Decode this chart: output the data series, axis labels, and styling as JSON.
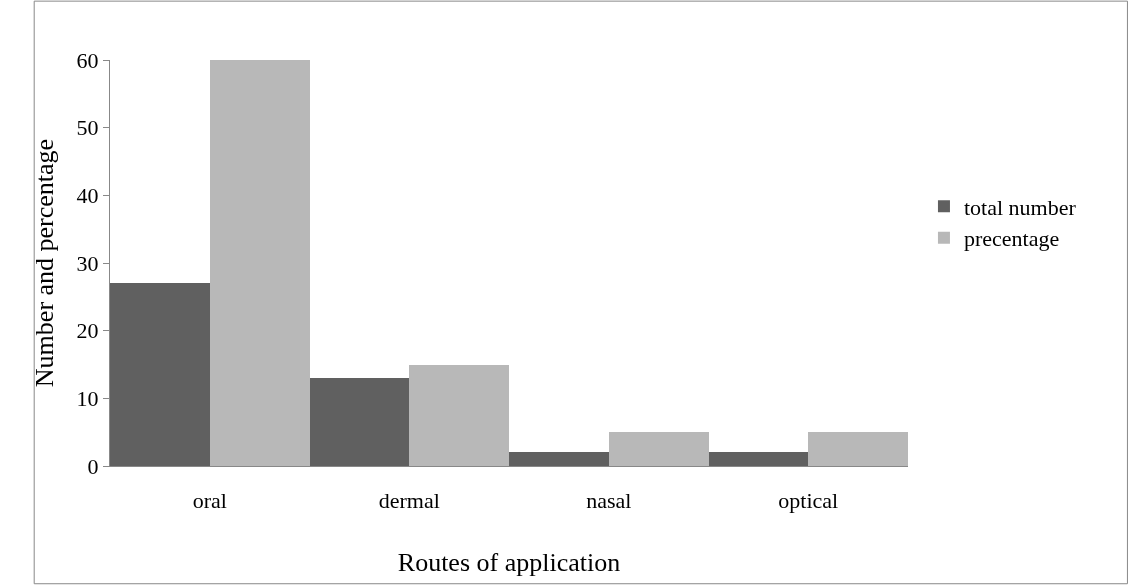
{
  "chart_data": {
    "type": "bar",
    "xlabel": "Routes of application",
    "ylabel": "Number and percentage",
    "categories": [
      "oral",
      "dermal",
      "nasal",
      "optical"
    ],
    "series": [
      {
        "name": "total number",
        "color": "#606060",
        "values": [
          27,
          13,
          2,
          2
        ]
      },
      {
        "name": "precentage",
        "color": "#b8b8b8",
        "values": [
          60,
          15,
          5,
          5
        ]
      }
    ],
    "ylim": [
      0,
      60
    ],
    "yticks": [
      0,
      10,
      20,
      30,
      40,
      50,
      60
    ],
    "legend": "right"
  }
}
